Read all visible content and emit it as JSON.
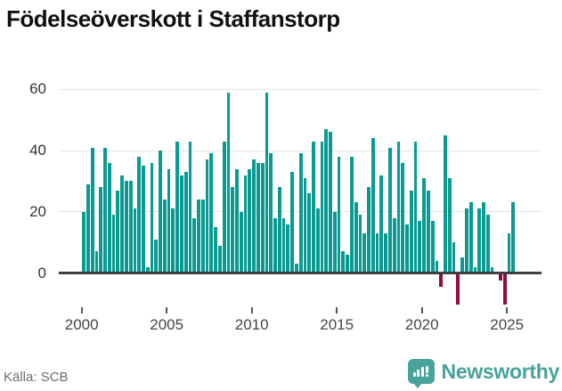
{
  "title": "Födelseöverskott i Staffanstorp",
  "source": "Källa: SCB",
  "branding": {
    "name": "Newsworthy"
  },
  "colors": {
    "bar_positive": "#0b9a92",
    "bar_negative": "#8f0c3f",
    "gridline": "#e4e4e4",
    "axis": "#3d3d42",
    "logo_teal": "#48a39b",
    "title_text": "#101010"
  },
  "chart_data": {
    "type": "bar",
    "title": "Födelseöverskott i Staffanstorp",
    "xlabel": "",
    "ylabel": "",
    "period": "quarterly",
    "grid": "horizontal",
    "y_ticks": [
      0,
      20,
      40,
      60
    ],
    "ylim": [
      -14,
      62
    ],
    "x_tick_labels": [
      "2000",
      "2005",
      "2010",
      "2015",
      "2020",
      "2025"
    ],
    "start": "2000 Q1",
    "end": "2025 Q2",
    "values": [
      20,
      29,
      41,
      7,
      28,
      41,
      36,
      19,
      27,
      32,
      30,
      30,
      21,
      38,
      35,
      2,
      36,
      11,
      40,
      24,
      34,
      21,
      43,
      32,
      33,
      43,
      18,
      24,
      24,
      37,
      39,
      15,
      9,
      43,
      59,
      28,
      34,
      20,
      32,
      34,
      37,
      36,
      36,
      59,
      39,
      18,
      28,
      18,
      16,
      33,
      3,
      39,
      31,
      26,
      43,
      21,
      43,
      47,
      46,
      20,
      38,
      7,
      6,
      38,
      23,
      19,
      13,
      28,
      44,
      13,
      32,
      13,
      41,
      18,
      43,
      36,
      16,
      27,
      43,
      17,
      31,
      27,
      17,
      4,
      -4,
      45,
      31,
      10,
      -10,
      5,
      21,
      23,
      2,
      21,
      23,
      19,
      2,
      0,
      -2,
      -10,
      13,
      23
    ]
  }
}
